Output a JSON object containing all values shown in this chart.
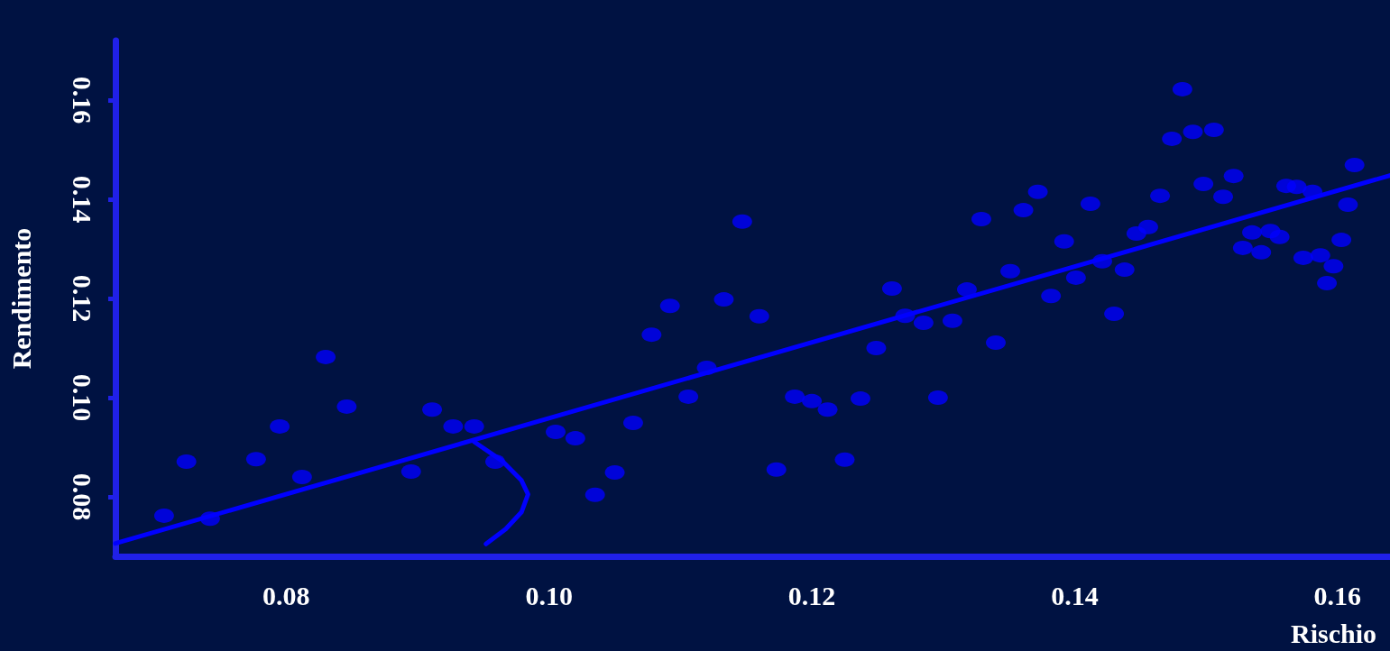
{
  "chart_data": {
    "type": "scatter",
    "xlabel": "Rischio",
    "ylabel": "Rendimento",
    "xlim": [
      0.067,
      0.164
    ],
    "ylim": [
      0.068,
      0.172
    ],
    "xticks": [
      0.08,
      {
        "value": 0.1,
        "label": "0.10"
      },
      0.12,
      0.14,
      0.16
    ],
    "yticks": [
      0.08,
      {
        "value": 0.1,
        "label": "0.10"
      },
      0.12,
      0.14,
      0.16
    ],
    "grid": false,
    "series": [
      {
        "marker": "circle",
        "color": "#0000ff",
        "x": [
          0.0707,
          0.0724,
          0.0742,
          0.0777,
          0.0795,
          0.0812,
          0.083,
          0.0846,
          0.0895,
          0.0911,
          0.0927,
          0.0943,
          0.0959,
          0.1005,
          0.102,
          0.1035,
          0.105,
          0.1064,
          0.1078,
          0.1092,
          0.1106,
          0.112,
          0.1133,
          0.1147,
          0.116,
          0.1173,
          0.1187,
          0.12,
          0.1212,
          0.1225,
          0.1237,
          0.1249,
          0.1261,
          0.1271,
          0.1285,
          0.1296,
          0.1307,
          0.1318,
          0.1329,
          0.134,
          0.1351,
          0.1361,
          0.1372,
          0.1382,
          0.1392,
          0.1401,
          0.1412,
          0.1421,
          0.143,
          0.1438,
          0.1447,
          0.1456,
          0.1465,
          0.1474,
          0.1482,
          0.149,
          0.1498,
          0.1506,
          0.1513,
          0.1521,
          0.1528,
          0.1535,
          0.1542,
          0.1549,
          0.1556,
          0.1561,
          0.1569,
          0.1574,
          0.1581,
          0.1587,
          0.1592,
          0.1597,
          0.1603,
          0.1608,
          0.1613
        ],
        "values": [
          0.0762,
          0.0871,
          0.0756,
          0.0876,
          0.0942,
          0.084,
          0.1082,
          0.0982,
          0.0851,
          0.0976,
          0.0942,
          0.0942,
          0.0871,
          0.0931,
          0.0918,
          0.0804,
          0.0849,
          0.0949,
          0.1127,
          0.1185,
          0.1002,
          0.106,
          0.1198,
          0.1355,
          0.1164,
          0.0855,
          0.1002,
          0.0993,
          0.0976,
          0.0875,
          0.0998,
          0.11,
          0.122,
          0.1165,
          0.1151,
          0.1,
          0.1155,
          0.1218,
          0.136,
          0.1111,
          0.1255,
          0.1378,
          0.1415,
          0.1205,
          0.1315,
          0.1242,
          0.1391,
          0.1275,
          0.1169,
          0.1258,
          0.1331,
          0.1344,
          0.1407,
          0.1522,
          0.1622,
          0.1536,
          0.1431,
          0.154,
          0.1405,
          0.1447,
          0.1302,
          0.1333,
          0.1293,
          0.1336,
          0.1324,
          0.1427,
          0.1425,
          0.1282,
          0.1415,
          0.1287,
          0.1231,
          0.1265,
          0.1318,
          0.1389,
          0.1469
        ]
      },
      {
        "type": "line",
        "marker": "none",
        "color": "#0000ff",
        "line_style": "solid",
        "x": [
          0.067,
          0.164
        ],
        "values": [
          0.0706,
          0.1448
        ]
      },
      {
        "type": "line",
        "marker": "none",
        "color": "#0000ff",
        "line_style": "solid",
        "x": [
          0.0943,
          0.0964,
          0.0979,
          0.0984,
          0.0979,
          0.0967,
          0.0952
        ],
        "values": [
          0.0911,
          0.0873,
          0.0833,
          0.0805,
          0.0769,
          0.0735,
          0.0705
        ]
      }
    ]
  }
}
